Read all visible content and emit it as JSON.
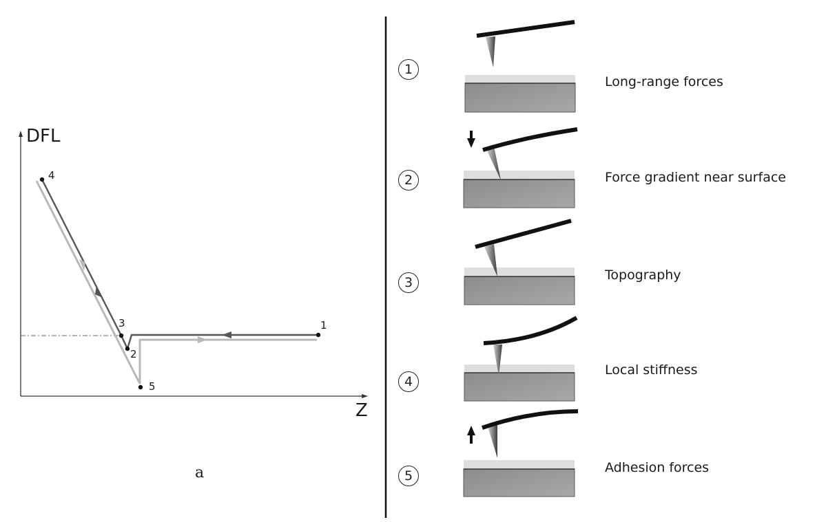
{
  "graph": {
    "y_axis_label": "DFL",
    "x_axis_label": "Z",
    "points": [
      {
        "id": "p1",
        "label": "1"
      },
      {
        "id": "p2",
        "label": "2"
      },
      {
        "id": "p3",
        "label": "3"
      },
      {
        "id": "p4",
        "label": "4"
      },
      {
        "id": "p5",
        "label": "5"
      }
    ],
    "caption": "a",
    "colors": {
      "approach": "#555555",
      "retract": "#b8b8b8",
      "axis": "#333333"
    }
  },
  "stages": [
    {
      "number": "1",
      "label": "Long-range forces"
    },
    {
      "number": "2",
      "label": "Force gradient near surface"
    },
    {
      "number": "3",
      "label": "Topography"
    },
    {
      "number": "4",
      "label": "Local stiffness"
    },
    {
      "number": "5",
      "label": "Adhesion forces"
    }
  ]
}
